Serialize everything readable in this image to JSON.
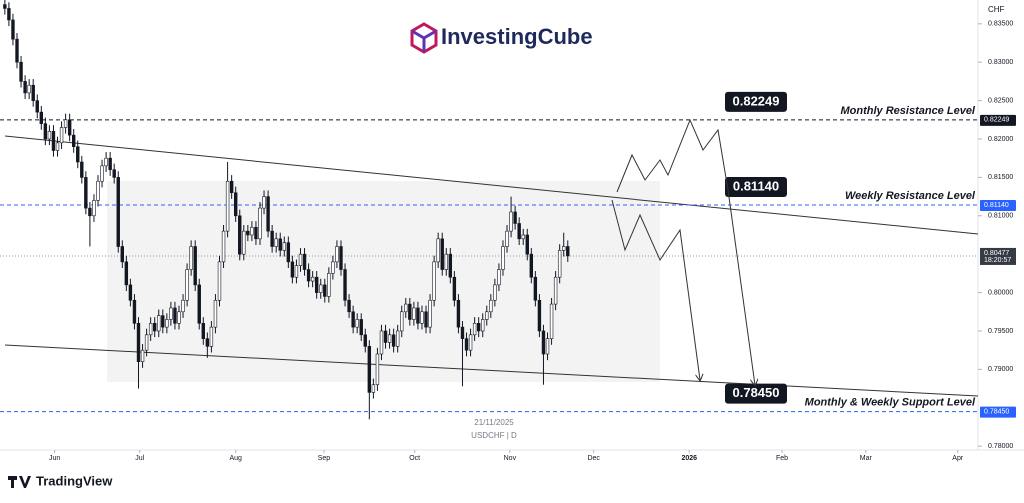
{
  "header": {
    "logo_text": "InvestingCube"
  },
  "chart_data": {
    "type": "candlestick",
    "currency": "CHF",
    "date_label": "21/11/2025",
    "symbol_label": "USDCHF | D",
    "ohlc": [
      [
        0.8375,
        0.8383,
        0.8362,
        0.837
      ],
      [
        0.837,
        0.8378,
        0.8347,
        0.8355
      ],
      [
        0.8355,
        0.8363,
        0.8322,
        0.833
      ],
      [
        0.833,
        0.8338,
        0.8292,
        0.83
      ],
      [
        0.83,
        0.8308,
        0.8267,
        0.8275
      ],
      [
        0.8275,
        0.8283,
        0.8252,
        0.826
      ],
      [
        0.826,
        0.8278,
        0.8252,
        0.827
      ],
      [
        0.827,
        0.8278,
        0.8242,
        0.825
      ],
      [
        0.825,
        0.8258,
        0.8227,
        0.8235
      ],
      [
        0.8235,
        0.8243,
        0.8212,
        0.822
      ],
      [
        0.822,
        0.8228,
        0.8192,
        0.82
      ],
      [
        0.82,
        0.8218,
        0.8192,
        0.821
      ],
      [
        0.821,
        0.8218,
        0.8177,
        0.8185
      ],
      [
        0.8185,
        0.8203,
        0.8177,
        0.8195
      ],
      [
        0.8195,
        0.8223,
        0.8187,
        0.8215
      ],
      [
        0.8215,
        0.8233,
        0.8207,
        0.8225
      ],
      [
        0.8225,
        0.8233,
        0.8197,
        0.8205
      ],
      [
        0.8205,
        0.8213,
        0.8182,
        0.819
      ],
      [
        0.819,
        0.8198,
        0.8162,
        0.817
      ],
      [
        0.817,
        0.8178,
        0.8142,
        0.815
      ],
      [
        0.815,
        0.8158,
        0.8102,
        0.811
      ],
      [
        0.811,
        0.8118,
        0.806,
        0.81
      ],
      [
        0.81,
        0.8128,
        0.8092,
        0.812
      ],
      [
        0.812,
        0.8153,
        0.8112,
        0.8145
      ],
      [
        0.8145,
        0.8173,
        0.8137,
        0.8165
      ],
      [
        0.8165,
        0.8183,
        0.8157,
        0.8175
      ],
      [
        0.8175,
        0.8183,
        0.8152,
        0.816
      ],
      [
        0.816,
        0.8168,
        0.8142,
        0.815
      ],
      [
        0.815,
        0.8158,
        0.8052,
        0.806
      ],
      [
        0.806,
        0.8068,
        0.8032,
        0.804
      ],
      [
        0.804,
        0.8048,
        0.8002,
        0.801
      ],
      [
        0.801,
        0.8018,
        0.7982,
        0.799
      ],
      [
        0.799,
        0.7998,
        0.7952,
        0.796
      ],
      [
        0.796,
        0.7968,
        0.7875,
        0.791
      ],
      [
        0.791,
        0.7933,
        0.7902,
        0.7925
      ],
      [
        0.7925,
        0.7953,
        0.7917,
        0.7945
      ],
      [
        0.7945,
        0.7968,
        0.7937,
        0.796
      ],
      [
        0.796,
        0.7968,
        0.7942,
        0.795
      ],
      [
        0.795,
        0.7978,
        0.7942,
        0.797
      ],
      [
        0.797,
        0.7978,
        0.7947,
        0.7955
      ],
      [
        0.7955,
        0.7973,
        0.7947,
        0.7965
      ],
      [
        0.7965,
        0.7988,
        0.7957,
        0.798
      ],
      [
        0.798,
        0.7988,
        0.7952,
        0.796
      ],
      [
        0.796,
        0.7983,
        0.7952,
        0.7975
      ],
      [
        0.7975,
        0.7998,
        0.7967,
        0.799
      ],
      [
        0.799,
        0.8038,
        0.7982,
        0.803
      ],
      [
        0.803,
        0.8068,
        0.8022,
        0.806
      ],
      [
        0.806,
        0.8068,
        0.8002,
        0.801
      ],
      [
        0.801,
        0.8018,
        0.7952,
        0.796
      ],
      [
        0.796,
        0.7968,
        0.7932,
        0.794
      ],
      [
        0.794,
        0.7948,
        0.7915,
        0.793
      ],
      [
        0.793,
        0.7963,
        0.7922,
        0.7955
      ],
      [
        0.7955,
        0.7998,
        0.7947,
        0.799
      ],
      [
        0.799,
        0.8048,
        0.7982,
        0.804
      ],
      [
        0.804,
        0.8088,
        0.8032,
        0.808
      ],
      [
        0.808,
        0.817,
        0.8072,
        0.8145
      ],
      [
        0.8145,
        0.8153,
        0.8122,
        0.813
      ],
      [
        0.813,
        0.8138,
        0.8092,
        0.81
      ],
      [
        0.81,
        0.8108,
        0.8042,
        0.805
      ],
      [
        0.805,
        0.8088,
        0.8042,
        0.808
      ],
      [
        0.808,
        0.8088,
        0.8067,
        0.8075
      ],
      [
        0.8075,
        0.8093,
        0.8067,
        0.8085
      ],
      [
        0.8085,
        0.8093,
        0.8062,
        0.807
      ],
      [
        0.807,
        0.8118,
        0.8062,
        0.811
      ],
      [
        0.811,
        0.8133,
        0.8102,
        0.8125
      ],
      [
        0.8125,
        0.8133,
        0.8072,
        0.808
      ],
      [
        0.808,
        0.8088,
        0.8052,
        0.806
      ],
      [
        0.806,
        0.8078,
        0.8052,
        0.807
      ],
      [
        0.807,
        0.8078,
        0.8047,
        0.8055
      ],
      [
        0.8055,
        0.8073,
        0.8047,
        0.8065
      ],
      [
        0.8065,
        0.8073,
        0.8032,
        0.804
      ],
      [
        0.804,
        0.8048,
        0.8012,
        0.802
      ],
      [
        0.802,
        0.8043,
        0.8012,
        0.8035
      ],
      [
        0.8035,
        0.8058,
        0.8027,
        0.805
      ],
      [
        0.805,
        0.8058,
        0.8022,
        0.803
      ],
      [
        0.803,
        0.8038,
        0.8007,
        0.8015
      ],
      [
        0.8015,
        0.8028,
        0.8007,
        0.802
      ],
      [
        0.802,
        0.8028,
        0.7992,
        0.8
      ],
      [
        0.8,
        0.8018,
        0.7992,
        0.801
      ],
      [
        0.801,
        0.8018,
        0.7987,
        0.7995
      ],
      [
        0.7995,
        0.8033,
        0.7987,
        0.8025
      ],
      [
        0.8025,
        0.8048,
        0.8017,
        0.804
      ],
      [
        0.804,
        0.8068,
        0.8032,
        0.806
      ],
      [
        0.806,
        0.8068,
        0.8022,
        0.803
      ],
      [
        0.803,
        0.8038,
        0.7982,
        0.799
      ],
      [
        0.799,
        0.7998,
        0.7967,
        0.7975
      ],
      [
        0.7975,
        0.7983,
        0.7947,
        0.7955
      ],
      [
        0.7955,
        0.7973,
        0.7947,
        0.7965
      ],
      [
        0.7965,
        0.7973,
        0.7937,
        0.7945
      ],
      [
        0.7945,
        0.7953,
        0.7922,
        0.793
      ],
      [
        0.793,
        0.7938,
        0.7835,
        0.787
      ],
      [
        0.787,
        0.7888,
        0.7862,
        0.788
      ],
      [
        0.788,
        0.7928,
        0.7872,
        0.792
      ],
      [
        0.792,
        0.7958,
        0.7912,
        0.795
      ],
      [
        0.795,
        0.7958,
        0.7927,
        0.7935
      ],
      [
        0.7935,
        0.7953,
        0.7927,
        0.7945
      ],
      [
        0.7945,
        0.7953,
        0.7922,
        0.793
      ],
      [
        0.793,
        0.7958,
        0.7922,
        0.795
      ],
      [
        0.795,
        0.7983,
        0.7942,
        0.7975
      ],
      [
        0.7975,
        0.7993,
        0.7967,
        0.7985
      ],
      [
        0.7985,
        0.7993,
        0.7957,
        0.7965
      ],
      [
        0.7965,
        0.7988,
        0.7957,
        0.798
      ],
      [
        0.798,
        0.7988,
        0.7952,
        0.796
      ],
      [
        0.796,
        0.7983,
        0.7952,
        0.7975
      ],
      [
        0.7975,
        0.7983,
        0.7947,
        0.7955
      ],
      [
        0.7955,
        0.7998,
        0.7947,
        0.799
      ],
      [
        0.799,
        0.8048,
        0.7982,
        0.804
      ],
      [
        0.804,
        0.8078,
        0.8032,
        0.807
      ],
      [
        0.807,
        0.8078,
        0.8022,
        0.803
      ],
      [
        0.803,
        0.8058,
        0.8022,
        0.805
      ],
      [
        0.805,
        0.8058,
        0.8012,
        0.802
      ],
      [
        0.802,
        0.8028,
        0.7982,
        0.799
      ],
      [
        0.799,
        0.7998,
        0.7947,
        0.7955
      ],
      [
        0.7955,
        0.7963,
        0.7878,
        0.794
      ],
      [
        0.794,
        0.7948,
        0.7917,
        0.7925
      ],
      [
        0.7925,
        0.7953,
        0.7917,
        0.7945
      ],
      [
        0.7945,
        0.7968,
        0.7937,
        0.796
      ],
      [
        0.796,
        0.7968,
        0.7942,
        0.795
      ],
      [
        0.795,
        0.7973,
        0.7942,
        0.7965
      ],
      [
        0.7965,
        0.7983,
        0.7957,
        0.7975
      ],
      [
        0.7975,
        0.7998,
        0.7967,
        0.799
      ],
      [
        0.799,
        0.8018,
        0.7982,
        0.801
      ],
      [
        0.801,
        0.8038,
        0.8002,
        0.803
      ],
      [
        0.803,
        0.8068,
        0.8022,
        0.806
      ],
      [
        0.806,
        0.8088,
        0.8052,
        0.808
      ],
      [
        0.808,
        0.8125,
        0.8072,
        0.8105
      ],
      [
        0.8105,
        0.8113,
        0.8082,
        0.809
      ],
      [
        0.809,
        0.8098,
        0.8062,
        0.807
      ],
      [
        0.807,
        0.8083,
        0.8062,
        0.8075
      ],
      [
        0.8075,
        0.8083,
        0.8042,
        0.805
      ],
      [
        0.805,
        0.8058,
        0.8012,
        0.802
      ],
      [
        0.802,
        0.8028,
        0.7982,
        0.799
      ],
      [
        0.799,
        0.7998,
        0.7942,
        0.795
      ],
      [
        0.795,
        0.7958,
        0.788,
        0.792
      ],
      [
        0.792,
        0.7948,
        0.7912,
        0.794
      ],
      [
        0.794,
        0.7993,
        0.7932,
        0.7985
      ],
      [
        0.7985,
        0.8028,
        0.7977,
        0.802
      ],
      [
        0.802,
        0.8063,
        0.8012,
        0.8055
      ],
      [
        0.8055,
        0.8078,
        0.8047,
        0.806
      ],
      [
        0.806,
        0.8068,
        0.804,
        0.80477
      ]
    ],
    "xlim": [
      -1.2,
      240.3
    ],
    "xticks": [
      {
        "value": 12.3,
        "label": "Jun"
      },
      {
        "value": 33.3,
        "label": "Jul"
      },
      {
        "value": 57,
        "label": "Aug"
      },
      {
        "value": 78.8,
        "label": "Sep"
      },
      {
        "value": 101.2,
        "label": "Oct"
      },
      {
        "value": 124.7,
        "label": "Nov"
      },
      {
        "value": 145.4,
        "label": "Dec"
      },
      {
        "value": 169,
        "label": "2026"
      },
      {
        "value": 191.9,
        "label": "Feb"
      },
      {
        "value": 212.6,
        "label": "Mar"
      },
      {
        "value": 235.3,
        "label": "Apr"
      }
    ],
    "ylim": [
      0.7795,
      0.8381
    ],
    "yticks": [
      {
        "value": 0.835,
        "label": "0.83500"
      },
      {
        "value": 0.83,
        "label": "0.83000"
      },
      {
        "value": 0.825,
        "label": "0.82500"
      },
      {
        "value": 0.82,
        "label": "0.82000"
      },
      {
        "value": 0.815,
        "label": "0.81500"
      },
      {
        "value": 0.81,
        "label": "0.81000"
      },
      {
        "value": 0.8,
        "label": "0.80000"
      },
      {
        "value": 0.795,
        "label": "0.79500"
      },
      {
        "value": 0.79,
        "label": "0.79000"
      },
      {
        "value": 0.78,
        "label": "0.78000"
      }
    ],
    "levels": [
      {
        "value": 0.82249,
        "name": "Monthly Resistance Level",
        "color": "#131722"
      },
      {
        "value": 0.8114,
        "value_label": "0.81140",
        "name": "Weekly Resistance Level",
        "color": "#2962ff"
      },
      {
        "value": 0.7845,
        "value_label": "0.78450",
        "name": "Monthly & Weekly Support Level",
        "color": "#2962ff"
      }
    ],
    "last_price": 0.80477,
    "countdown": "18:20:57",
    "up_color": "#ffffff",
    "down_color": "#131722"
  },
  "footer": {
    "brand": "TradingView"
  }
}
